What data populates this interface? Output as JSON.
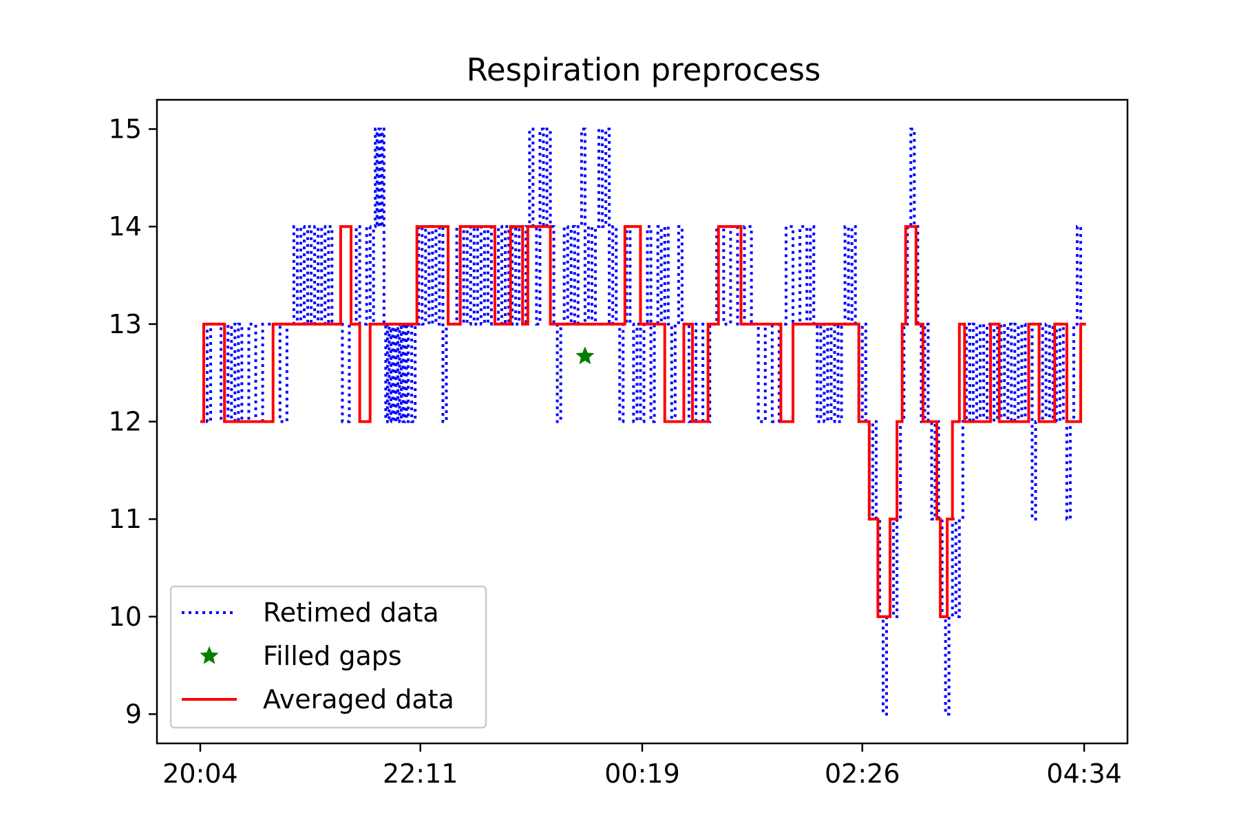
{
  "chart_data": {
    "type": "line",
    "title": "Respiration preprocess",
    "xlabel": "",
    "ylabel": "",
    "x_unit": "minutes",
    "x_ticks": [
      {
        "label": "20:04",
        "value": 0
      },
      {
        "label": "22:11",
        "value": 127
      },
      {
        "label": "00:19",
        "value": 255
      },
      {
        "label": "02:26",
        "value": 382
      },
      {
        "label": "04:34",
        "value": 510
      }
    ],
    "xlim": [
      -25,
      535
    ],
    "ylim": [
      8.7,
      15.3
    ],
    "y_ticks": [
      9,
      10,
      11,
      12,
      13,
      14,
      15
    ],
    "grid": false,
    "legend_position": "lower-left",
    "colors": {
      "retimed": "#0000ff",
      "filled": "#008000",
      "averaged": "#ff0000"
    },
    "series": [
      {
        "name": "Retimed data",
        "style": "dotted",
        "points": [
          [
            0,
            12
          ],
          [
            2,
            13
          ],
          [
            4,
            12
          ],
          [
            6,
            13
          ],
          [
            8,
            13
          ],
          [
            10,
            13
          ],
          [
            12,
            12
          ],
          [
            14,
            13
          ],
          [
            16,
            12
          ],
          [
            18,
            13
          ],
          [
            20,
            12
          ],
          [
            22,
            13
          ],
          [
            24,
            12
          ],
          [
            28,
            13
          ],
          [
            32,
            12
          ],
          [
            36,
            13
          ],
          [
            40,
            13
          ],
          [
            46,
            12
          ],
          [
            50,
            13
          ],
          [
            52,
            13
          ],
          [
            54,
            14
          ],
          [
            56,
            13
          ],
          [
            58,
            14
          ],
          [
            60,
            13
          ],
          [
            62,
            14
          ],
          [
            64,
            13
          ],
          [
            66,
            14
          ],
          [
            68,
            13
          ],
          [
            70,
            14
          ],
          [
            72,
            13
          ],
          [
            74,
            14
          ],
          [
            76,
            13
          ],
          [
            78,
            13
          ],
          [
            82,
            12
          ],
          [
            86,
            13
          ],
          [
            88,
            13
          ],
          [
            90,
            14
          ],
          [
            92,
            13
          ],
          [
            94,
            13
          ],
          [
            96,
            14
          ],
          [
            98,
            13
          ],
          [
            100,
            14
          ],
          [
            101,
            15
          ],
          [
            102,
            14
          ],
          [
            103,
            15
          ],
          [
            104,
            14
          ],
          [
            105,
            15
          ],
          [
            106,
            13
          ],
          [
            107,
            12
          ],
          [
            108,
            13
          ],
          [
            109,
            12
          ],
          [
            110,
            13
          ],
          [
            111,
            12
          ],
          [
            112,
            13
          ],
          [
            113,
            12
          ],
          [
            114,
            13
          ],
          [
            115,
            12
          ],
          [
            116,
            13
          ],
          [
            117,
            12
          ],
          [
            118,
            13
          ],
          [
            119,
            12
          ],
          [
            120,
            13
          ],
          [
            122,
            12
          ],
          [
            124,
            13
          ],
          [
            126,
            14
          ],
          [
            128,
            13
          ],
          [
            130,
            14
          ],
          [
            132,
            13
          ],
          [
            134,
            14
          ],
          [
            136,
            13
          ],
          [
            138,
            14
          ],
          [
            140,
            12
          ],
          [
            142,
            13
          ],
          [
            144,
            13
          ],
          [
            148,
            14
          ],
          [
            150,
            13
          ],
          [
            152,
            14
          ],
          [
            154,
            13
          ],
          [
            156,
            14
          ],
          [
            158,
            13
          ],
          [
            160,
            14
          ],
          [
            162,
            13
          ],
          [
            164,
            14
          ],
          [
            166,
            13
          ],
          [
            168,
            14
          ],
          [
            170,
            13
          ],
          [
            172,
            14
          ],
          [
            174,
            13
          ],
          [
            176,
            14
          ],
          [
            178,
            13
          ],
          [
            180,
            14
          ],
          [
            182,
            13
          ],
          [
            184,
            14
          ],
          [
            186,
            13
          ],
          [
            188,
            14
          ],
          [
            190,
            15
          ],
          [
            192,
            14
          ],
          [
            194,
            13
          ],
          [
            196,
            15
          ],
          [
            198,
            14
          ],
          [
            200,
            15
          ],
          [
            202,
            14
          ],
          [
            204,
            13
          ],
          [
            206,
            12
          ],
          [
            208,
            13
          ],
          [
            210,
            14
          ],
          [
            212,
            13
          ],
          [
            214,
            14
          ],
          [
            216,
            13
          ],
          [
            218,
            14
          ],
          [
            220,
            15
          ],
          [
            222,
            13
          ],
          [
            224,
            14
          ],
          [
            226,
            13
          ],
          [
            228,
            14
          ],
          [
            230,
            15
          ],
          [
            232,
            14
          ],
          [
            234,
            15
          ],
          [
            236,
            13
          ],
          [
            238,
            14
          ],
          [
            240,
            13
          ],
          [
            242,
            12
          ],
          [
            244,
            13
          ],
          [
            246,
            14
          ],
          [
            248,
            13
          ],
          [
            250,
            12
          ],
          [
            252,
            13
          ],
          [
            254,
            12
          ],
          [
            256,
            13
          ],
          [
            258,
            14
          ],
          [
            260,
            12
          ],
          [
            262,
            13
          ],
          [
            264,
            14
          ],
          [
            266,
            13
          ],
          [
            268,
            14
          ],
          [
            270,
            13
          ],
          [
            272,
            12
          ],
          [
            274,
            13
          ],
          [
            276,
            14
          ],
          [
            278,
            13
          ],
          [
            282,
            12
          ],
          [
            286,
            13
          ],
          [
            290,
            12
          ],
          [
            294,
            13
          ],
          [
            298,
            14
          ],
          [
            302,
            13
          ],
          [
            306,
            14
          ],
          [
            310,
            13
          ],
          [
            314,
            14
          ],
          [
            318,
            13
          ],
          [
            322,
            12
          ],
          [
            326,
            13
          ],
          [
            330,
            12
          ],
          [
            334,
            13
          ],
          [
            338,
            14
          ],
          [
            342,
            13
          ],
          [
            346,
            14
          ],
          [
            350,
            13
          ],
          [
            352,
            14
          ],
          [
            354,
            13
          ],
          [
            356,
            12
          ],
          [
            358,
            13
          ],
          [
            360,
            12
          ],
          [
            362,
            13
          ],
          [
            364,
            12
          ],
          [
            366,
            13
          ],
          [
            368,
            12
          ],
          [
            370,
            13
          ],
          [
            372,
            14
          ],
          [
            374,
            13
          ],
          [
            376,
            14
          ],
          [
            378,
            13
          ],
          [
            380,
            12
          ],
          [
            382,
            13
          ],
          [
            384,
            12
          ],
          [
            386,
            11
          ],
          [
            388,
            12
          ],
          [
            390,
            11
          ],
          [
            392,
            10
          ],
          [
            394,
            9
          ],
          [
            396,
            10
          ],
          [
            398,
            11
          ],
          [
            400,
            10
          ],
          [
            402,
            11
          ],
          [
            404,
            12
          ],
          [
            406,
            13
          ],
          [
            408,
            14
          ],
          [
            410,
            15
          ],
          [
            412,
            14
          ],
          [
            414,
            13
          ],
          [
            416,
            12
          ],
          [
            418,
            13
          ],
          [
            420,
            12
          ],
          [
            422,
            11
          ],
          [
            424,
            12
          ],
          [
            426,
            11
          ],
          [
            428,
            10
          ],
          [
            430,
            9
          ],
          [
            432,
            10
          ],
          [
            434,
            11
          ],
          [
            436,
            10
          ],
          [
            438,
            11
          ],
          [
            440,
            12
          ],
          [
            442,
            13
          ],
          [
            444,
            12
          ],
          [
            446,
            13
          ],
          [
            448,
            12
          ],
          [
            450,
            13
          ],
          [
            452,
            12
          ],
          [
            454,
            13
          ],
          [
            456,
            12
          ],
          [
            458,
            13
          ],
          [
            460,
            12
          ],
          [
            462,
            13
          ],
          [
            464,
            12
          ],
          [
            466,
            13
          ],
          [
            468,
            12
          ],
          [
            470,
            13
          ],
          [
            472,
            12
          ],
          [
            474,
            13
          ],
          [
            476,
            12
          ],
          [
            478,
            13
          ],
          [
            480,
            11
          ],
          [
            482,
            12
          ],
          [
            484,
            13
          ],
          [
            486,
            12
          ],
          [
            488,
            13
          ],
          [
            490,
            12
          ],
          [
            492,
            13
          ],
          [
            494,
            12
          ],
          [
            496,
            13
          ],
          [
            498,
            12
          ],
          [
            500,
            11
          ],
          [
            502,
            12
          ],
          [
            504,
            13
          ],
          [
            506,
            14
          ],
          [
            508,
            13
          ],
          [
            510,
            13
          ]
        ]
      },
      {
        "name": "Filled gaps",
        "style": "star",
        "points": [
          [
            222,
            12.67
          ]
        ]
      },
      {
        "name": "Averaged data",
        "style": "step",
        "points": [
          [
            0,
            12
          ],
          [
            2,
            13
          ],
          [
            14,
            12
          ],
          [
            42,
            13
          ],
          [
            81,
            14
          ],
          [
            87,
            13
          ],
          [
            92,
            12
          ],
          [
            98,
            13
          ],
          [
            125,
            14
          ],
          [
            143,
            13
          ],
          [
            150,
            14
          ],
          [
            170,
            13
          ],
          [
            179,
            14
          ],
          [
            186,
            13
          ],
          [
            189,
            14
          ],
          [
            202,
            13
          ],
          [
            245,
            14
          ],
          [
            254,
            13
          ],
          [
            268,
            12
          ],
          [
            279,
            13
          ],
          [
            284,
            12
          ],
          [
            293,
            13
          ],
          [
            299,
            14
          ],
          [
            312,
            13
          ],
          [
            335,
            12
          ],
          [
            342,
            13
          ],
          [
            380,
            12
          ],
          [
            386,
            11
          ],
          [
            391,
            10
          ],
          [
            398,
            11
          ],
          [
            402,
            12
          ],
          [
            405,
            13
          ],
          [
            407,
            14
          ],
          [
            413,
            13
          ],
          [
            417,
            12
          ],
          [
            425,
            11
          ],
          [
            427,
            10
          ],
          [
            431,
            11
          ],
          [
            434,
            12
          ],
          [
            438,
            13
          ],
          [
            441,
            12
          ],
          [
            456,
            13
          ],
          [
            461,
            12
          ],
          [
            478,
            13
          ],
          [
            484,
            12
          ],
          [
            493,
            13
          ],
          [
            494,
            13
          ],
          [
            500,
            12
          ],
          [
            508,
            13
          ],
          [
            511,
            13
          ]
        ]
      }
    ]
  }
}
